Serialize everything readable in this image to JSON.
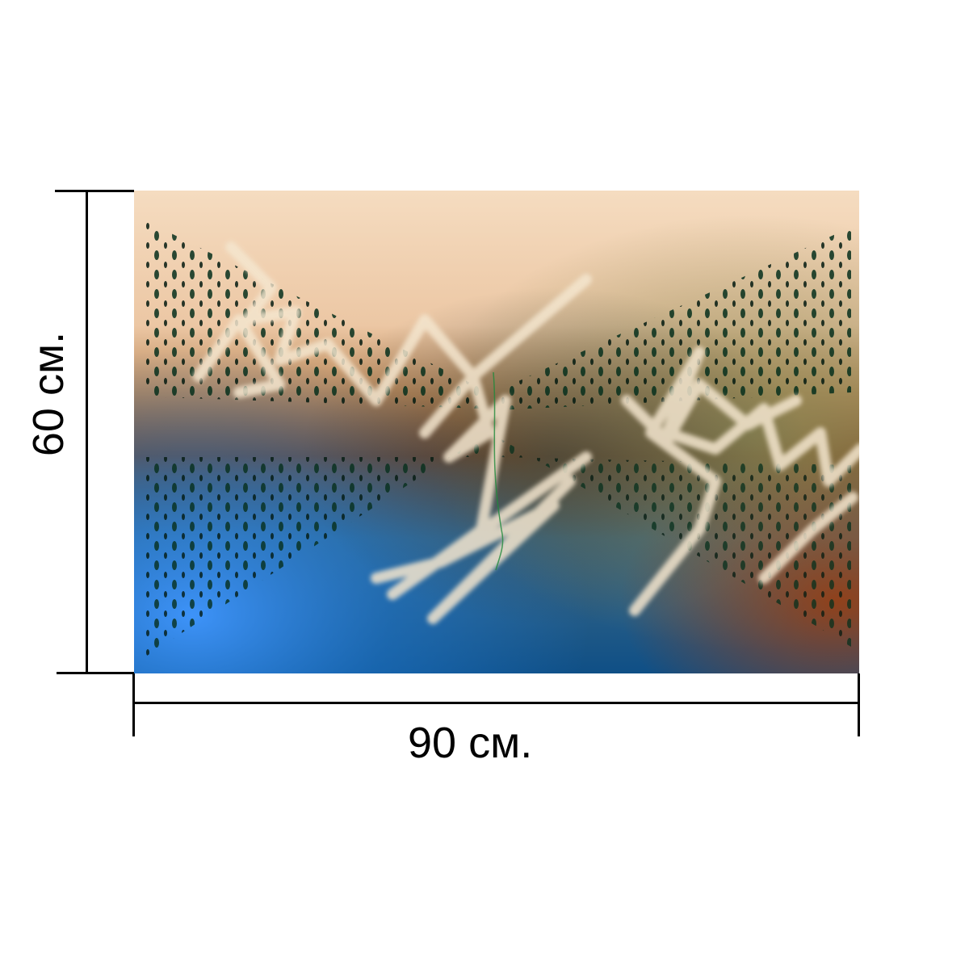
{
  "dimensions": {
    "width_label": "90 см.",
    "height_label": "60 см."
  },
  "artwork": {
    "description_icon": "abstract-print-image",
    "palette": {
      "top": "#f2d2b4",
      "middle_brown": "#8a4a1c",
      "blue": "#2a7fd6",
      "olive": "#6c6a36",
      "dots": "#0b5a2e",
      "strokes": "#f4e6cf"
    }
  }
}
